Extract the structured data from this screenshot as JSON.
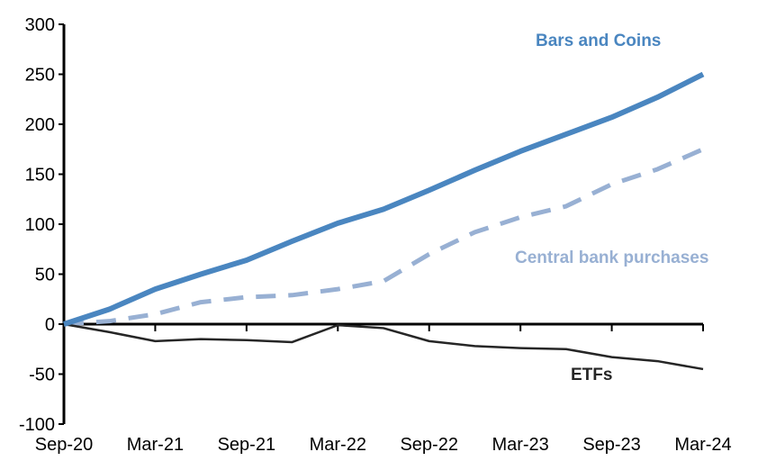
{
  "chart_data": {
    "type": "line",
    "title": "",
    "xlabel": "",
    "ylabel": "",
    "ylim": [
      -100,
      300
    ],
    "yticks": [
      -100,
      -50,
      0,
      50,
      100,
      150,
      200,
      250,
      300
    ],
    "x": [
      "Sep-20",
      "Dec-20",
      "Mar-21",
      "Jun-21",
      "Sep-21",
      "Dec-21",
      "Mar-22",
      "Jun-22",
      "Sep-22",
      "Dec-22",
      "Mar-23",
      "Jun-23",
      "Sep-23",
      "Dec-23",
      "Mar-24"
    ],
    "xtick_labels": [
      "Sep-20",
      "Mar-21",
      "Sep-21",
      "Mar-22",
      "Sep-22",
      "Mar-23",
      "Sep-23",
      "Mar-24"
    ],
    "grid": false,
    "series": [
      {
        "name": "Bars and Coins",
        "color": "#4a86c0",
        "style": "solid-thick",
        "values": [
          0,
          15,
          35,
          50,
          64,
          83,
          101,
          115,
          134,
          154,
          173,
          190,
          207,
          227,
          250
        ]
      },
      {
        "name": "Central bank purchases",
        "color": "#98b0d3",
        "style": "dashed",
        "values": [
          0,
          3,
          10,
          22,
          27,
          29,
          35,
          43,
          70,
          92,
          107,
          118,
          140,
          155,
          175
        ]
      },
      {
        "name": "ETFs",
        "color": "#262626",
        "style": "solid-thin",
        "values": [
          0,
          -8,
          -17,
          -15,
          -16,
          -18,
          -1,
          -4,
          -17,
          -22,
          -24,
          -25,
          -33,
          -37,
          -45
        ]
      }
    ]
  }
}
